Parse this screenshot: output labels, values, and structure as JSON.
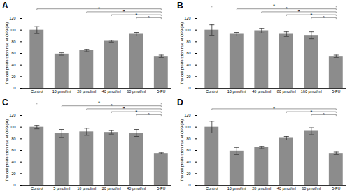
{
  "chart_data": [
    {
      "type": "bar",
      "title": "A",
      "ylabel": "The cell proliferation rate of OP9 (%)",
      "categories": [
        "Control",
        "10 μmol/ml",
        "20 μmol/ml",
        "40 μmol/ml",
        "60 μmol/ml",
        "5-FU"
      ],
      "values": [
        100,
        59,
        65,
        81,
        93,
        55
      ],
      "errors": [
        6,
        2,
        2,
        1.5,
        3,
        2
      ],
      "color": "#8c8c8c",
      "ylim": [
        0,
        120
      ],
      "yticks": [
        0,
        20,
        40,
        60,
        80,
        100,
        120
      ],
      "significance": [
        {
          "from": "Control",
          "to": "5-FU",
          "label": "*"
        },
        {
          "from": "20 μmol/ml",
          "to": "5-FU",
          "label": "*"
        },
        {
          "from": "40 μmol/ml",
          "to": "5-FU",
          "label": "*"
        },
        {
          "from": "60 μmol/ml",
          "to": "5-FU",
          "label": "*"
        }
      ]
    },
    {
      "type": "bar",
      "title": "B",
      "ylabel": "The cell proliferation rate of OP9 (%)",
      "categories": [
        "Control",
        "10 μmol/ml",
        "40 μmol/ml",
        "80 μmol/ml",
        "160 μmol/ml",
        "5-FU"
      ],
      "values": [
        100,
        93,
        99,
        93,
        91,
        55
      ],
      "errors": [
        9,
        3,
        4,
        4,
        6,
        2
      ],
      "color": "#8c8c8c",
      "ylim": [
        0,
        120
      ],
      "yticks": [
        0,
        20,
        40,
        60,
        80,
        100,
        120
      ],
      "significance": [
        {
          "from": "Control",
          "to": "5-FU",
          "label": "*"
        },
        {
          "from": "10 μmol/ml",
          "to": "5-FU",
          "label": "*"
        },
        {
          "from": "40 μmol/ml",
          "to": "5-FU",
          "label": "*"
        },
        {
          "from": "80 μmol/ml",
          "to": "5-FU",
          "label": "*"
        },
        {
          "from": "160 μmol/ml",
          "to": "5-FU",
          "label": "*"
        }
      ]
    },
    {
      "type": "bar",
      "title": "C",
      "ylabel": "The cell proliferation rate of OP9 (%)",
      "categories": [
        "Control",
        "5 μmol/ml",
        "10 μmol/ml",
        "20 μmol/ml",
        "40 μmol/ml",
        "5-FU"
      ],
      "values": [
        100,
        89,
        92,
        91,
        90,
        55
      ],
      "errors": [
        3,
        7,
        6,
        3,
        6,
        1
      ],
      "color": "#8c8c8c",
      "ylim": [
        0,
        120
      ],
      "yticks": [
        0,
        20,
        40,
        60,
        80,
        100,
        120
      ],
      "significance": [
        {
          "from": "Control",
          "to": "5-FU",
          "label": "*"
        },
        {
          "from": "5 μmol/ml",
          "to": "5-FU",
          "label": "*"
        },
        {
          "from": "10 μmol/ml",
          "to": "5-FU",
          "label": "*"
        },
        {
          "from": "20 μmol/ml",
          "to": "5-FU",
          "label": "*"
        },
        {
          "from": "40 μmol/ml",
          "to": "5-FU",
          "label": "*"
        }
      ]
    },
    {
      "type": "bar",
      "title": "D",
      "ylabel": "The cell proliferation rate of OP9 (%)",
      "categories": [
        "Control",
        "10 μmol/ml",
        "20 μmol/ml",
        "40 μmol/ml",
        "60 μmol/ml",
        "5-FU"
      ],
      "values": [
        100,
        59,
        65,
        81,
        93,
        55
      ],
      "errors": [
        10,
        6,
        2,
        3,
        6,
        2
      ],
      "color": "#8c8c8c",
      "ylim": [
        0,
        120
      ],
      "yticks": [
        0,
        20,
        40,
        60,
        80,
        100,
        120
      ],
      "significance": [
        {
          "from": "Control",
          "to": "5-FU",
          "label": "*"
        },
        {
          "from": "40 μmol/ml",
          "to": "5-FU",
          "label": "*"
        },
        {
          "from": "60 μmol/ml",
          "to": "5-FU",
          "label": "*"
        }
      ]
    }
  ]
}
